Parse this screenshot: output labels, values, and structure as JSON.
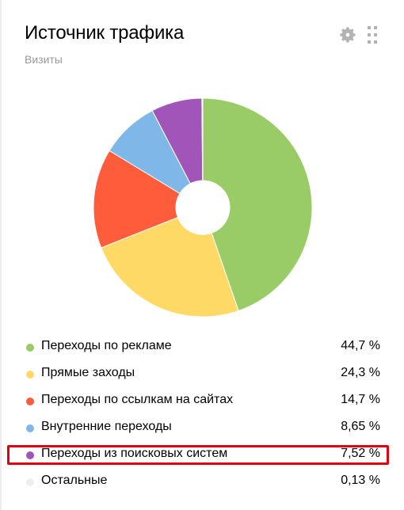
{
  "widget": {
    "title": "Источник трафика",
    "subtitle": "Визиты",
    "icons": {
      "settings": "gear-icon",
      "drag": "drag-handle-icon"
    }
  },
  "chart_data": {
    "type": "pie",
    "donut": true,
    "categories": [
      "Переходы по рекламе",
      "Прямые заходы",
      "Переходы по ссылкам на сайтах",
      "Внутренние переходы",
      "Переходы из поисковых систем",
      "Остальные"
    ],
    "values": [
      44.7,
      24.3,
      14.7,
      8.65,
      7.52,
      0.13
    ],
    "colors": [
      "#99cc66",
      "#ffd966",
      "#ff5c3b",
      "#7fb8e8",
      "#a155b9",
      "#eeeeee"
    ]
  },
  "legend": [
    {
      "label": "Переходы по рекламе",
      "value": "44,7 %",
      "color": "#99cc66"
    },
    {
      "label": "Прямые заходы",
      "value": "24,3 %",
      "color": "#ffd966"
    },
    {
      "label": "Переходы по ссылкам на сайтах",
      "value": "14,7 %",
      "color": "#ff5c3b"
    },
    {
      "label": "Внутренние переходы",
      "value": "8,65 %",
      "color": "#7fb8e8"
    },
    {
      "label": "Переходы из поисковых систем",
      "value": "7,52 %",
      "color": "#a155b9"
    },
    {
      "label": "Остальные",
      "value": "0,13 %",
      "color": "#eeeeee"
    }
  ],
  "highlight_color": "#e3000f"
}
